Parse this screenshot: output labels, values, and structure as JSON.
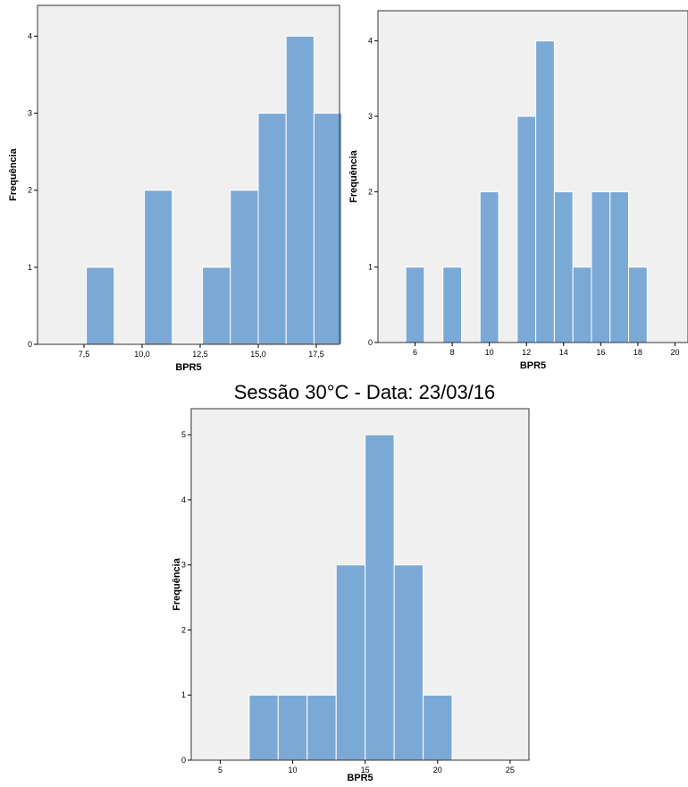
{
  "section_title": "Sessão 30°C - Data: 23/03/16",
  "colors": {
    "bar": "#7ba9d6",
    "plot_bg": "#f0f0f0",
    "frame": "#333333"
  },
  "chart_data": [
    {
      "type": "bar",
      "xlabel": "BPR5",
      "ylabel": "Frequência",
      "xlim": [
        5.5,
        18.5
      ],
      "ylim": [
        0,
        4.4
      ],
      "x_ticks": [
        7.5,
        10.0,
        12.5,
        15.0,
        17.5
      ],
      "x_tick_labels": [
        "7,5",
        "10,0",
        "12,5",
        "15,0",
        "17,5"
      ],
      "y_ticks": [
        0,
        1,
        2,
        3,
        4
      ],
      "bin_width": 1.2,
      "bin_left_edges": [
        7.6,
        10.1,
        12.6,
        13.8,
        15.0,
        16.2,
        17.4
      ],
      "bins": [
        {
          "from": 7.6,
          "to": 8.8,
          "count": 1
        },
        {
          "from": 10.1,
          "to": 11.3,
          "count": 2
        },
        {
          "from": 12.6,
          "to": 13.8,
          "count": 1
        },
        {
          "from": 13.8,
          "to": 15.0,
          "count": 2
        },
        {
          "from": 15.0,
          "to": 16.2,
          "count": 3
        },
        {
          "from": 16.2,
          "to": 17.4,
          "count": 4
        },
        {
          "from": 17.4,
          "to": 18.6,
          "count": 3
        }
      ],
      "counts": [
        1,
        2,
        1,
        2,
        3,
        4,
        3
      ]
    },
    {
      "type": "bar",
      "xlabel": "BPR5",
      "ylabel": "Frequência",
      "xlim": [
        4,
        20.7
      ],
      "ylim": [
        0,
        4.4
      ],
      "x_ticks": [
        6,
        8,
        10,
        12,
        14,
        16,
        18,
        20
      ],
      "x_tick_labels": [
        "6",
        "8",
        "10",
        "12",
        "14",
        "16",
        "18",
        "20"
      ],
      "y_ticks": [
        0,
        1,
        2,
        3,
        4
      ],
      "bin_width": 1.0,
      "bin_left_edges": [
        5.5,
        7.5,
        9.5,
        11.5,
        12.5,
        13.5,
        14.5,
        15.5,
        16.5,
        17.5
      ],
      "bins": [
        {
          "from": 5.5,
          "to": 6.5,
          "count": 1
        },
        {
          "from": 7.5,
          "to": 8.5,
          "count": 1
        },
        {
          "from": 9.5,
          "to": 10.5,
          "count": 2
        },
        {
          "from": 11.5,
          "to": 12.5,
          "count": 3
        },
        {
          "from": 12.5,
          "to": 13.5,
          "count": 4
        },
        {
          "from": 13.5,
          "to": 14.5,
          "count": 2
        },
        {
          "from": 14.5,
          "to": 15.5,
          "count": 1
        },
        {
          "from": 15.5,
          "to": 16.5,
          "count": 2
        },
        {
          "from": 16.5,
          "to": 17.5,
          "count": 2
        },
        {
          "from": 17.5,
          "to": 18.5,
          "count": 1
        }
      ],
      "counts": [
        1,
        1,
        2,
        3,
        4,
        2,
        1,
        2,
        2,
        1
      ]
    },
    {
      "type": "bar",
      "xlabel": "BPR5",
      "ylabel": "Frequência",
      "xlim": [
        3,
        26.3
      ],
      "ylim": [
        0,
        5.4
      ],
      "x_ticks": [
        5,
        10,
        15,
        20,
        25
      ],
      "x_tick_labels": [
        "5",
        "10",
        "15",
        "20",
        "25"
      ],
      "y_ticks": [
        0,
        1,
        2,
        3,
        4,
        5
      ],
      "bin_width": 2.0,
      "bin_left_edges": [
        7,
        9,
        11,
        13,
        15,
        17,
        19
      ],
      "bins": [
        {
          "from": 7,
          "to": 9,
          "count": 1
        },
        {
          "from": 9,
          "to": 11,
          "count": 1
        },
        {
          "from": 11,
          "to": 13,
          "count": 1
        },
        {
          "from": 13,
          "to": 15,
          "count": 3
        },
        {
          "from": 15,
          "to": 17,
          "count": 5
        },
        {
          "from": 17,
          "to": 19,
          "count": 3
        },
        {
          "from": 19,
          "to": 21,
          "count": 1
        }
      ],
      "counts": [
        1,
        1,
        1,
        3,
        5,
        3,
        1
      ]
    }
  ]
}
